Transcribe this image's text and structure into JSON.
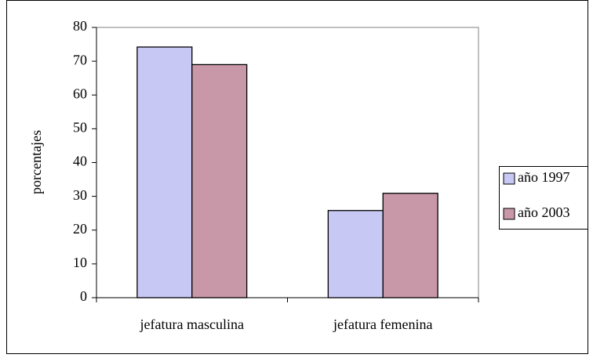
{
  "chart_data": {
    "type": "bar",
    "y_label": "porcentajes",
    "categories": [
      "jefatura masculina",
      "jefatura femenina"
    ],
    "series": [
      {
        "name": "año 1997",
        "color": "#c8c8f4",
        "values": [
          74.2,
          25.8
        ]
      },
      {
        "name": "año 2003",
        "color": "#c897a8",
        "values": [
          69,
          30.9
        ]
      }
    ],
    "ylim": [
      0,
      80
    ],
    "yticks": [
      0,
      10,
      20,
      30,
      40,
      50,
      60,
      70,
      80
    ],
    "grid": false,
    "legend": "right"
  }
}
